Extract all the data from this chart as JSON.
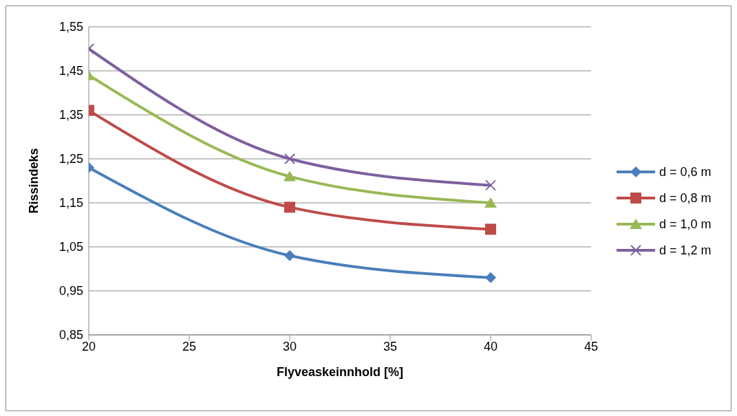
{
  "chart_data": {
    "type": "line",
    "xlabel": "Flyveaskeinnhold [%]",
    "ylabel": "Rissindeks",
    "x": [
      20,
      30,
      40
    ],
    "series": [
      {
        "name": "d = 0,6 m",
        "color": "#4a7ebb",
        "marker": "diamond",
        "values": [
          1.23,
          1.03,
          0.98
        ]
      },
      {
        "name": "d = 0,8 m",
        "color": "#be4b48",
        "marker": "square",
        "values": [
          1.36,
          1.14,
          1.09
        ]
      },
      {
        "name": "d = 1,0 m",
        "color": "#98b954",
        "marker": "triangle",
        "values": [
          1.44,
          1.21,
          1.15
        ]
      },
      {
        "name": "d = 1,2 m",
        "color": "#7d60a0",
        "marker": "cross",
        "values": [
          1.5,
          1.25,
          1.19
        ]
      }
    ],
    "xlim": [
      20,
      45
    ],
    "xticks": [
      20,
      25,
      30,
      35,
      40,
      45
    ],
    "ylim": [
      0.85,
      1.55
    ],
    "yticks": [
      {
        "value": 0.85,
        "label": "0,85"
      },
      {
        "value": 0.95,
        "label": "0,95"
      },
      {
        "value": 1.05,
        "label": "1,05"
      },
      {
        "value": 1.15,
        "label": "1,15"
      },
      {
        "value": 1.25,
        "label": "1,25"
      },
      {
        "value": 1.35,
        "label": "1,35"
      },
      {
        "value": 1.45,
        "label": "1,45"
      },
      {
        "value": 1.55,
        "label": "1,55"
      }
    ],
    "grid": "y",
    "legend": "right",
    "line_style": "solid"
  }
}
